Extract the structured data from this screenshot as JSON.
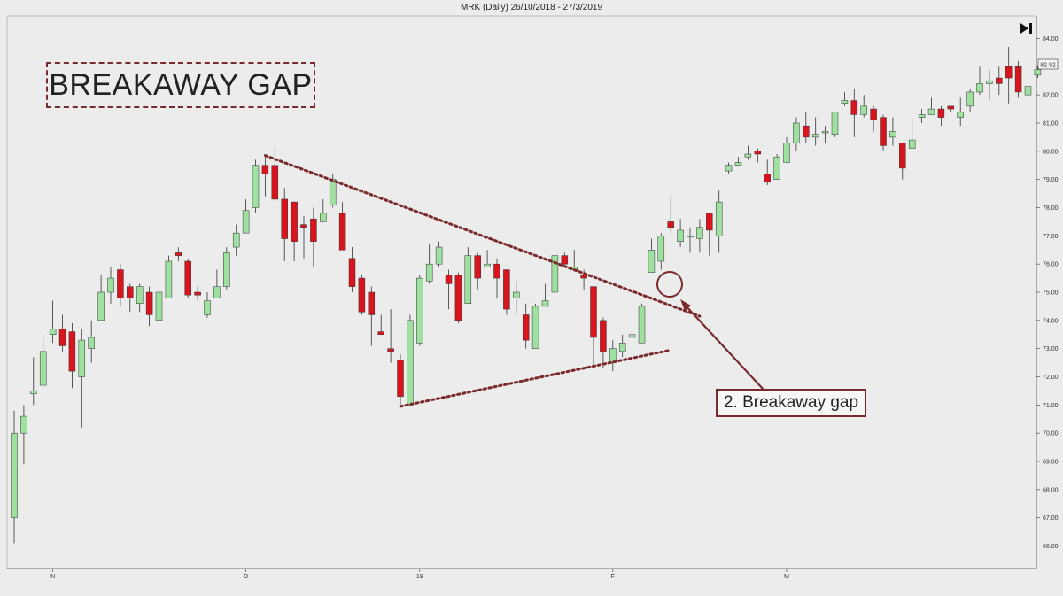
{
  "header": {
    "title": "MRK (Daily)  26/10/2018 - 27/3/2019"
  },
  "title_box": {
    "text": "BREAKAWAY GAP"
  },
  "callout": {
    "text": "2. Breakaway gap"
  },
  "icons": {
    "skip": "skip-to-end-icon"
  },
  "colors": {
    "up": "#9ee0a0",
    "down": "#d8141c",
    "annotation": "#7a2a2a",
    "background": "#ececec"
  },
  "chart_data": {
    "type": "candlestick",
    "ylim": [
      65.2,
      84.8
    ],
    "yticks": [
      66,
      67,
      68,
      69,
      70,
      71,
      72,
      73,
      74,
      75,
      76,
      77,
      78,
      79,
      80,
      81,
      82,
      83,
      84
    ],
    "last_price": "82.92",
    "x_labels": [
      {
        "label": "N",
        "index": 4
      },
      {
        "label": "D",
        "index": 24
      },
      {
        "label": "19",
        "index": 42
      },
      {
        "label": "F",
        "index": 62
      },
      {
        "label": "M",
        "index": 80
      }
    ],
    "candles": [
      [
        67.0,
        70.0,
        66.1,
        70.8
      ],
      [
        70.0,
        70.6,
        68.9,
        71.0
      ],
      [
        71.4,
        71.5,
        71.0,
        72.7
      ],
      [
        71.7,
        72.9,
        71.7,
        73.5
      ],
      [
        73.5,
        73.7,
        73.2,
        74.7
      ],
      [
        73.7,
        73.1,
        72.9,
        74.2
      ],
      [
        73.6,
        72.2,
        71.6,
        73.9
      ],
      [
        72.0,
        73.3,
        70.2,
        73.7
      ],
      [
        73.0,
        73.4,
        72.5,
        74.0
      ],
      [
        74.0,
        75.0,
        74.0,
        75.6
      ],
      [
        75.0,
        75.5,
        74.6,
        75.9
      ],
      [
        75.8,
        74.8,
        74.5,
        76.0
      ],
      [
        75.2,
        74.8,
        74.3,
        75.3
      ],
      [
        74.6,
        75.2,
        74.3,
        75.3
      ],
      [
        75.0,
        74.2,
        73.8,
        75.2
      ],
      [
        74.0,
        75.0,
        73.2,
        75.1
      ],
      [
        74.8,
        76.1,
        74.8,
        76.3
      ],
      [
        76.4,
        76.3,
        76.1,
        76.6
      ],
      [
        76.1,
        74.9,
        74.8,
        76.2
      ],
      [
        75.0,
        74.9,
        74.7,
        75.2
      ],
      [
        74.2,
        74.7,
        74.1,
        75.0
      ],
      [
        74.8,
        75.2,
        74.8,
        75.8
      ],
      [
        75.2,
        76.4,
        75.1,
        76.6
      ],
      [
        76.6,
        77.1,
        76.3,
        77.4
      ],
      [
        77.1,
        77.9,
        77.1,
        78.3
      ],
      [
        78.0,
        79.5,
        77.8,
        79.7
      ],
      [
        79.5,
        79.2,
        78.4,
        79.8
      ],
      [
        79.5,
        78.3,
        78.2,
        80.2
      ],
      [
        78.3,
        76.9,
        76.1,
        78.7
      ],
      [
        78.2,
        76.8,
        76.1,
        78.2
      ],
      [
        77.4,
        77.3,
        76.2,
        77.7
      ],
      [
        77.6,
        76.8,
        75.9,
        78.0
      ],
      [
        77.5,
        77.8,
        77.5,
        78.3
      ],
      [
        78.1,
        79.0,
        78.0,
        79.2
      ],
      [
        77.8,
        76.5,
        76.5,
        78.2
      ],
      [
        76.2,
        75.2,
        75.0,
        76.6
      ],
      [
        75.5,
        74.3,
        74.2,
        75.6
      ],
      [
        75.0,
        74.2,
        73.1,
        75.2
      ],
      [
        73.6,
        73.5,
        73.5,
        74.2
      ],
      [
        73.0,
        72.9,
        72.5,
        74.4
      ],
      [
        72.6,
        71.3,
        71.0,
        72.8
      ],
      [
        71.0,
        74.0,
        71.0,
        74.2
      ],
      [
        73.2,
        75.5,
        73.1,
        75.6
      ],
      [
        75.4,
        76.0,
        75.3,
        76.7
      ],
      [
        76.0,
        76.6,
        75.9,
        76.8
      ],
      [
        75.6,
        75.3,
        74.4,
        75.8
      ],
      [
        75.6,
        74.0,
        73.9,
        75.7
      ],
      [
        74.6,
        76.3,
        74.6,
        76.6
      ],
      [
        76.3,
        75.5,
        75.1,
        76.4
      ],
      [
        75.9,
        76.0,
        75.9,
        76.5
      ],
      [
        76.0,
        75.5,
        74.8,
        76.2
      ],
      [
        75.8,
        74.4,
        74.2,
        75.8
      ],
      [
        74.8,
        75.0,
        74.2,
        75.4
      ],
      [
        74.2,
        73.3,
        73.0,
        74.6
      ],
      [
        73.0,
        74.5,
        73.0,
        74.6
      ],
      [
        74.5,
        74.7,
        74.5,
        75.3
      ],
      [
        75.0,
        76.3,
        74.3,
        76.3
      ],
      [
        76.3,
        76.0,
        75.9,
        76.4
      ],
      [
        75.8,
        75.9,
        75.8,
        76.5
      ],
      [
        75.6,
        75.5,
        75.1,
        75.8
      ],
      [
        75.2,
        73.4,
        72.4,
        75.2
      ],
      [
        74.0,
        72.9,
        72.3,
        74.1
      ],
      [
        72.5,
        73.0,
        72.2,
        73.3
      ],
      [
        72.9,
        73.2,
        72.7,
        73.5
      ],
      [
        73.4,
        73.5,
        73.4,
        73.8
      ],
      [
        73.2,
        74.5,
        73.2,
        74.6
      ],
      [
        75.7,
        76.5,
        75.7,
        76.9
      ],
      [
        76.1,
        77.0,
        75.8,
        77.1
      ],
      [
        77.5,
        77.3,
        77.1,
        78.4
      ],
      [
        76.8,
        77.2,
        76.6,
        77.6
      ],
      [
        77.0,
        77.0,
        76.4,
        77.3
      ],
      [
        76.9,
        77.3,
        76.4,
        77.6
      ],
      [
        77.8,
        77.2,
        76.3,
        77.8
      ],
      [
        77.0,
        78.2,
        76.4,
        78.6
      ],
      [
        79.3,
        79.5,
        79.2,
        79.6
      ],
      [
        79.5,
        79.6,
        79.5,
        79.8
      ],
      [
        79.8,
        79.9,
        79.7,
        80.2
      ],
      [
        80.0,
        79.9,
        79.6,
        80.1
      ],
      [
        79.2,
        78.9,
        78.8,
        79.7
      ],
      [
        79.0,
        79.8,
        79.0,
        79.9
      ],
      [
        79.6,
        80.3,
        79.6,
        80.5
      ],
      [
        80.3,
        81.0,
        80.0,
        81.2
      ],
      [
        80.9,
        80.5,
        80.3,
        81.4
      ],
      [
        80.5,
        80.6,
        80.2,
        81.2
      ],
      [
        80.7,
        80.7,
        80.3,
        80.9
      ],
      [
        80.6,
        81.4,
        80.5,
        81.4
      ],
      [
        81.7,
        81.8,
        81.6,
        82.1
      ],
      [
        81.8,
        81.3,
        80.5,
        82.2
      ],
      [
        81.3,
        81.6,
        81.2,
        82.0
      ],
      [
        81.5,
        81.1,
        80.7,
        81.6
      ],
      [
        81.2,
        80.2,
        80.0,
        81.3
      ],
      [
        80.5,
        80.7,
        80.2,
        81.2
      ],
      [
        80.3,
        79.4,
        79.0,
        80.3
      ],
      [
        80.1,
        80.4,
        80.1,
        81.2
      ],
      [
        81.2,
        81.3,
        81.0,
        81.5
      ],
      [
        81.3,
        81.5,
        81.3,
        81.9
      ],
      [
        81.5,
        81.2,
        80.9,
        81.6
      ],
      [
        81.6,
        81.5,
        81.4,
        81.6
      ],
      [
        81.2,
        81.4,
        80.9,
        81.9
      ],
      [
        81.6,
        82.1,
        81.4,
        82.2
      ],
      [
        82.1,
        82.4,
        82.0,
        83.0
      ],
      [
        82.4,
        82.5,
        81.8,
        82.9
      ],
      [
        82.6,
        82.4,
        82.0,
        83.0
      ],
      [
        83.0,
        82.6,
        81.7,
        83.7
      ],
      [
        83.0,
        82.1,
        81.9,
        83.2
      ],
      [
        82.0,
        82.3,
        81.9,
        82.8
      ],
      [
        82.7,
        82.9,
        82.6,
        83.0
      ]
    ],
    "trendlines": [
      {
        "from": [
          26,
          79.85
        ],
        "to": [
          71,
          74.15
        ]
      },
      {
        "from": [
          40,
          70.95
        ],
        "to": [
          68,
          72.95
        ]
      }
    ]
  }
}
